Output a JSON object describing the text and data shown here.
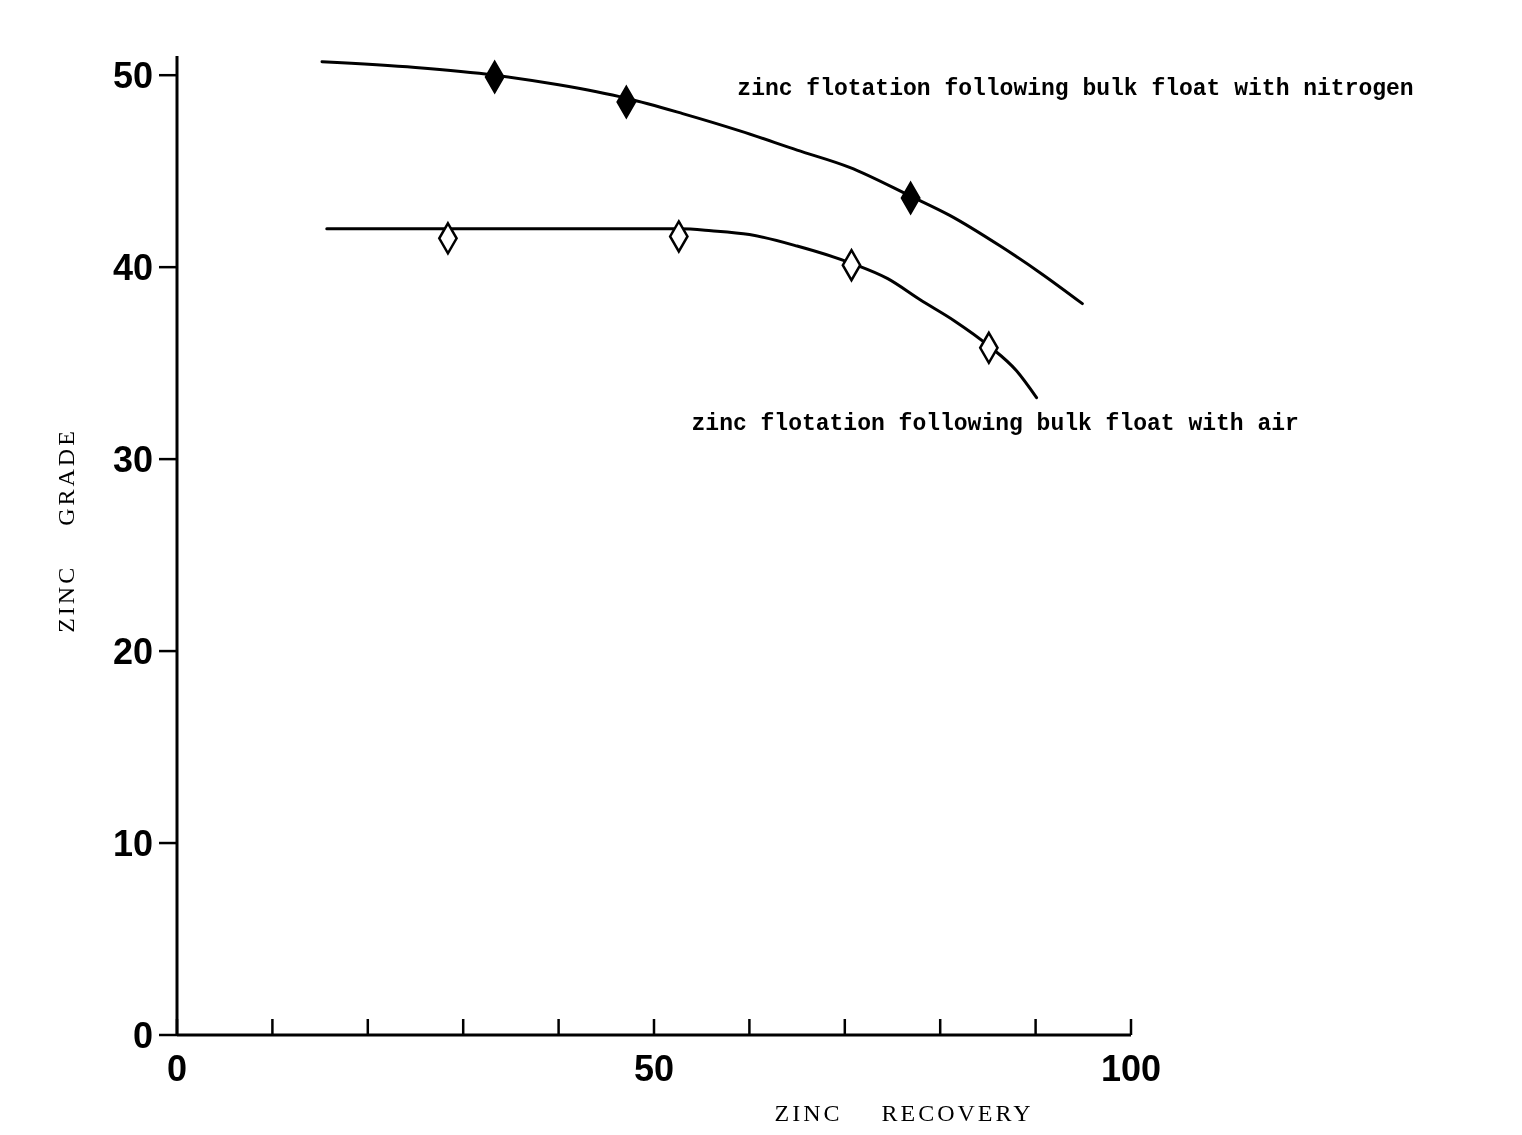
{
  "chart_data": {
    "type": "line",
    "xlabel": "ZINC RECOVERY",
    "ylabel": "ZINC GRADE",
    "xlim": [
      0,
      100
    ],
    "ylim": [
      0,
      51
    ],
    "xticks": [
      0,
      {
        "value": 10,
        "label": null
      },
      {
        "value": 20,
        "label": null
      },
      {
        "value": 30,
        "label": null
      },
      {
        "value": 40,
        "label": null
      },
      50,
      {
        "value": 60,
        "label": null
      },
      {
        "value": 70,
        "label": null
      },
      {
        "value": 80,
        "label": null
      },
      {
        "value": 90,
        "label": null
      },
      100
    ],
    "yticks": [
      0,
      10,
      20,
      30,
      40,
      50
    ],
    "grid": false,
    "legend": false,
    "series": [
      {
        "name": "zinc flotation following bulk float with nitrogen",
        "color": "#000000",
        "marker": "none",
        "x": [
          15.2,
          25,
          33.3,
          40,
          47.1,
          53,
          59,
          65,
          70.5,
          76.9,
          81,
          86.3,
          90.5,
          94.9
        ],
        "values": [
          50.7,
          50.4,
          50,
          49.5,
          48.8,
          48,
          47.1,
          46.1,
          45.2,
          43.7,
          42.7,
          41.1,
          39.7,
          38.1
        ]
      },
      {
        "type": "scatter",
        "color": "#000000",
        "marker": "diamond",
        "x": [
          33.3,
          47.1,
          76.9
        ],
        "values": [
          49.9,
          48.6,
          43.6
        ]
      },
      {
        "name": "zinc flotation following bulk float with air",
        "color": "#000000",
        "marker": "none",
        "x": [
          15.7,
          30,
          45,
          52.7,
          56,
          60,
          65,
          70.7,
          74.5,
          77.9,
          81.5,
          85.1,
          88,
          90.1
        ],
        "values": [
          42,
          42,
          42,
          42,
          41.9,
          41.7,
          41.1,
          40.2,
          39.4,
          38.3,
          37.2,
          35.9,
          34.6,
          33.2
        ]
      },
      {
        "type": "scatter",
        "color": "#ffffff",
        "marker": "diamond",
        "x": [
          28.4,
          52.6,
          70.7,
          85.1
        ],
        "values": [
          41.5,
          41.6,
          40.1,
          35.8
        ]
      }
    ]
  }
}
